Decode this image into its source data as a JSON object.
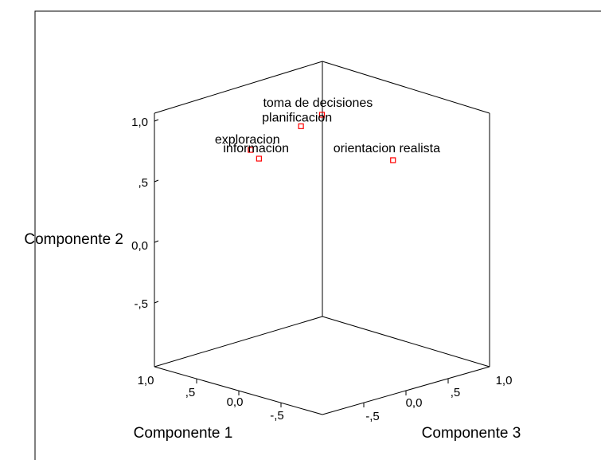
{
  "chart_data": {
    "type": "scatter",
    "projection": "3d",
    "axes": {
      "x": {
        "label": "Componente 1",
        "ticks": [
          "1,0",
          ",5",
          "0,0",
          "-,5"
        ]
      },
      "y": {
        "label": "Componente 2",
        "ticks": [
          "1,0",
          ",5",
          "0,0",
          "-,5"
        ]
      },
      "z": {
        "label": "Componente 3",
        "ticks": [
          "-,5",
          "0,0",
          ",5",
          "1,0"
        ]
      }
    },
    "points": [
      {
        "label": "toma de decisiones",
        "x": 0.1,
        "y": 0.95,
        "z": 0.1
      },
      {
        "label": "planificacion",
        "x": 0.25,
        "y": 0.85,
        "z": 0.0
      },
      {
        "label": "exploracion",
        "x": 0.85,
        "y": 0.55,
        "z": 0.0
      },
      {
        "label": "informacion",
        "x": 0.75,
        "y": 0.5,
        "z": 0.0
      },
      {
        "label": "orientacion realista",
        "x": 0.05,
        "y": 0.45,
        "z": 0.9
      }
    ],
    "marker_color": "#ff0000"
  }
}
